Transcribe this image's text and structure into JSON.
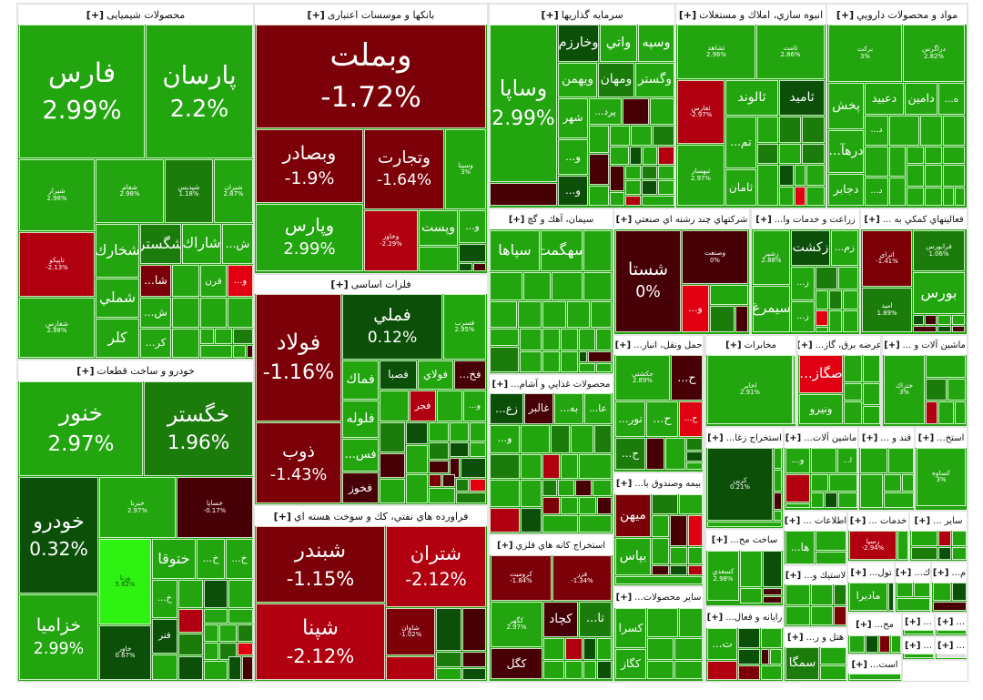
{
  "colors": {
    "g": "#22a50f",
    "m": "#1b7c0c",
    "d": "#0b4f09",
    "l": "#2ef212",
    "r": "#b10010",
    "R": "#e00012",
    "dr": "#7b0008",
    "k": "#460006"
  },
  "expand_label": "[+]",
  "sectors": [
    {
      "title": "محصولات شیمیایی",
      "tiles": [
        {
          "name": "فارس",
          "pct": "2.99%",
          "color": "g"
        },
        {
          "name": "پارسان",
          "pct": "2.2%",
          "color": "g"
        },
        {
          "name": "شیراز",
          "pct": "2.98%",
          "color": "g"
        },
        {
          "name": "شفام",
          "pct": "2.98%",
          "color": "g"
        },
        {
          "name": "شپدیس",
          "pct": "1.18%",
          "color": "m"
        },
        {
          "name": "شیران",
          "pct": "2.87%",
          "color": "g"
        },
        {
          "name": "تاپیکو",
          "pct": "-2.13%",
          "color": "r"
        },
        {
          "name": "شفارس",
          "pct": "2.98%",
          "color": "g"
        },
        {
          "name": "شخارك",
          "color": "g"
        },
        {
          "name": "شگستر",
          "color": "m"
        },
        {
          "name": "شاراك",
          "color": "g"
        },
        {
          "name": "ش...",
          "color": "g"
        },
        {
          "name": "شا...",
          "color": "dr"
        },
        {
          "name": "قرن",
          "color": "g"
        },
        {
          "name": "و...",
          "color": "R"
        },
        {
          "name": "شملي",
          "color": "g"
        },
        {
          "name": "كلر",
          "color": "g"
        },
        {
          "name": "ش...",
          "color": "g"
        },
        {
          "name": "كر...",
          "color": "g"
        }
      ]
    },
    {
      "title": "بانکها و موسسات اعتباری",
      "tiles": [
        {
          "name": "وبملت",
          "pct": "-1.72%",
          "color": "dr"
        },
        {
          "name": "وبصادر",
          "pct": "-1.9%",
          "color": "dr"
        },
        {
          "name": "وتجارت",
          "pct": "-1.64%",
          "color": "dr"
        },
        {
          "name": "وسینا",
          "pct": "3%",
          "color": "g"
        },
        {
          "name": "وپارس",
          "pct": "2.99%",
          "color": "g"
        },
        {
          "name": "وخاور",
          "pct": "-2.29%",
          "color": "r"
        },
        {
          "name": "وپست",
          "color": "g"
        },
        {
          "name": "و...",
          "color": "g"
        }
      ]
    },
    {
      "title": "فلزات اساسی",
      "tiles": [
        {
          "name": "فولاد",
          "pct": "-1.16%",
          "color": "dr"
        },
        {
          "name": "ذوب",
          "pct": "-1.43%",
          "color": "dr"
        },
        {
          "name": "فملي",
          "pct": "0.12%",
          "color": "d"
        },
        {
          "name": "فسرب",
          "pct": "2.95%",
          "color": "g"
        },
        {
          "name": "فماك",
          "color": "g"
        },
        {
          "name": "فصبا",
          "color": "d"
        },
        {
          "name": "فولاي",
          "color": "g"
        },
        {
          "name": "فخ...",
          "color": "k"
        },
        {
          "name": "فجر",
          "color": "r"
        },
        {
          "name": "و...",
          "color": "g"
        },
        {
          "name": "فلوله",
          "color": "g"
        },
        {
          "name": "فس...",
          "color": "g"
        },
        {
          "name": "فخوز",
          "color": "k"
        }
      ]
    },
    {
      "title": "فراورده هاي نفتي، كك و سوخت هسته اي",
      "tiles": [
        {
          "name": "شبندر",
          "pct": "-1.15%",
          "color": "dr"
        },
        {
          "name": "شتران",
          "pct": "-2.12%",
          "color": "r"
        },
        {
          "name": "شپنا",
          "pct": "-2.12%",
          "color": "r"
        },
        {
          "name": "شاوان",
          "pct": "-1.02%",
          "color": "dr"
        }
      ]
    },
    {
      "title": "خودرو و ساخت قطعات",
      "tiles": [
        {
          "name": "خنور",
          "pct": "2.97%",
          "color": "g"
        },
        {
          "name": "خگستر",
          "pct": "1.96%",
          "color": "m"
        },
        {
          "name": "خودرو",
          "pct": "0.32%",
          "color": "d"
        },
        {
          "name": "خزامیا",
          "pct": "2.99%",
          "color": "g"
        },
        {
          "name": "خبرنا",
          "pct": "2.97%",
          "color": "g"
        },
        {
          "name": "خساپا",
          "pct": "-0.17%",
          "color": "k"
        },
        {
          "name": "ورنا",
          "pct": "5.82%",
          "color": "l"
        },
        {
          "name": "خاور",
          "pct": "0.67%",
          "color": "d"
        },
        {
          "name": "ختوقا",
          "color": "g"
        },
        {
          "name": "خ...",
          "color": "g"
        },
        {
          "name": "خ...",
          "color": "g"
        },
        {
          "name": "خ...",
          "color": "g"
        },
        {
          "name": "فنر",
          "color": "d"
        }
      ]
    },
    {
      "title": "سرمایه گذاریها",
      "tiles": [
        {
          "name": "وساپا",
          "pct": "2.99%",
          "color": "g"
        },
        {
          "name": "وخارزم",
          "color": "d"
        },
        {
          "name": "واتي",
          "color": "g"
        },
        {
          "name": "وسپه",
          "color": "g"
        },
        {
          "name": "ويهمن",
          "color": "g"
        },
        {
          "name": "ومهان",
          "color": "m"
        },
        {
          "name": "وگستر",
          "color": "g"
        },
        {
          "name": "شهر",
          "color": "g"
        },
        {
          "name": "پرد...",
          "color": "g"
        },
        {
          "name": "و...",
          "color": "g"
        },
        {
          "name": "و...",
          "color": "d"
        }
      ]
    },
    {
      "title": "انبوه سازي، املاك و مستغلات",
      "tiles": [
        {
          "name": "ثشاهد",
          "pct": "2.96%",
          "color": "g"
        },
        {
          "name": "ثامت",
          "pct": "2.86%",
          "color": "g"
        },
        {
          "name": "ثفارس",
          "pct": "-2.97%",
          "color": "r"
        },
        {
          "name": "ثبهساز",
          "pct": "2.97%",
          "color": "g"
        },
        {
          "name": "ثالوند",
          "color": "g"
        },
        {
          "name": "ثاميد",
          "color": "d"
        },
        {
          "name": "تم...",
          "color": "g"
        },
        {
          "name": "ثامان",
          "color": "g"
        }
      ]
    },
    {
      "title": "مواد و محصولات دارويي",
      "tiles": [
        {
          "name": "برکت",
          "pct": "3%",
          "color": "g"
        },
        {
          "name": "دراگرس",
          "pct": "2.82%",
          "color": "g"
        },
        {
          "name": "پخش",
          "color": "g"
        },
        {
          "name": "دعبيد",
          "color": "g"
        },
        {
          "name": "دامين",
          "color": "g"
        },
        {
          "name": "ه...",
          "color": "g"
        },
        {
          "name": "درهآ...",
          "color": "g"
        },
        {
          "name": "دجابر",
          "color": "g"
        },
        {
          "name": "د...",
          "color": "g"
        },
        {
          "name": "د...",
          "color": "g"
        }
      ]
    },
    {
      "title": "سيمان، آهك و گچ",
      "tiles": [
        {
          "name": "سپاها",
          "color": "g"
        },
        {
          "name": "سهگمت",
          "color": "g"
        }
      ]
    },
    {
      "title": "شركتهاي چند رشته اي صنعتي",
      "tiles": [
        {
          "name": "شستا",
          "pct": "0%",
          "color": "k"
        },
        {
          "name": "وصنعت",
          "pct": "0%",
          "color": "k"
        },
        {
          "name": "و...",
          "color": "R"
        }
      ]
    },
    {
      "title": "زراعت و خدمات وا...",
      "tiles": [
        {
          "name": "زشير",
          "pct": "2.88%",
          "color": "g"
        },
        {
          "name": "زكشت",
          "color": "d"
        },
        {
          "name": "زم...",
          "color": "g"
        },
        {
          "name": "سيمرغ",
          "color": "g"
        },
        {
          "name": "ز...",
          "color": "g"
        },
        {
          "name": "ز...",
          "color": "g"
        }
      ]
    },
    {
      "title": "فعاليتهاي كمكي به ...",
      "tiles": [
        {
          "name": "اتراي",
          "pct": "-1.41%",
          "color": "dr"
        },
        {
          "name": "فرابورس",
          "pct": "1.06%",
          "color": "m"
        },
        {
          "name": "اميد",
          "pct": "1.89%",
          "color": "m"
        },
        {
          "name": "بورس",
          "color": "g"
        }
      ]
    },
    {
      "title": "حمل ونقل، انبار...",
      "tiles": [
        {
          "name": "حکشتی",
          "pct": "2.89%",
          "color": "g"
        },
        {
          "name": "ح...",
          "color": "k"
        },
        {
          "name": "تور...",
          "color": "g"
        },
        {
          "name": "ح...",
          "color": "g"
        },
        {
          "name": "ح...",
          "color": "R"
        },
        {
          "name": "ح...",
          "color": "m"
        }
      ]
    },
    {
      "title": "مخابرات",
      "tiles": [
        {
          "name": "اخابر",
          "pct": "2.91%",
          "color": "g"
        }
      ]
    },
    {
      "title": "عرضه برق، گاز...",
      "tiles": [
        {
          "name": "صگاز...",
          "color": "R"
        },
        {
          "name": "ونيرو",
          "color": "g"
        }
      ]
    },
    {
      "title": "ماشين آلات و ...",
      "tiles": [
        {
          "name": "ختراك",
          "pct": "3%",
          "color": "g"
        }
      ]
    },
    {
      "title": "محصولات غذايي و آشام...",
      "tiles": [
        {
          "name": "زع...",
          "color": "d"
        },
        {
          "name": "غالبر",
          "color": "k"
        },
        {
          "name": "به...",
          "color": "g"
        },
        {
          "name": "عا...",
          "color": "g"
        },
        {
          "name": "و...",
          "color": "g"
        }
      ]
    },
    {
      "title": "بيمه وصندوق با...",
      "tiles": [
        {
          "name": "ميهن",
          "color": "dr"
        },
        {
          "name": "بپاس",
          "color": "g"
        }
      ]
    },
    {
      "title": "استخراج كانه هاي فلزي",
      "tiles": [
        {
          "name": "كروميت",
          "pct": "-1.84%",
          "color": "dr"
        },
        {
          "name": "فزر",
          "pct": "-1.34%",
          "color": "dr"
        },
        {
          "name": "كگهر",
          "pct": "2.97%",
          "color": "g"
        },
        {
          "name": "كچاد",
          "color": "k"
        },
        {
          "name": "تا...",
          "color": "m"
        },
        {
          "name": "كگل",
          "color": "k"
        }
      ]
    },
    {
      "title": "ساير محصولات...",
      "tiles": [
        {
          "name": "كسرا",
          "color": "g"
        },
        {
          "name": "كگاز",
          "color": "g"
        }
      ]
    },
    {
      "title": "استخراج زغا...",
      "tiles": [
        {
          "name": "كرين",
          "pct": "0.21%",
          "color": "d"
        }
      ]
    },
    {
      "title": "ماشين آلات...",
      "tiles": [
        {
          "name": "و...",
          "color": "g"
        },
        {
          "name": "ا...",
          "color": "g"
        }
      ]
    },
    {
      "title": "قند و ...",
      "tiles": []
    },
    {
      "title": "استخ...",
      "tiles": [
        {
          "name": "كساوه",
          "pct": "3%",
          "color": "g"
        }
      ]
    },
    {
      "title": "ساخت مح...",
      "tiles": [
        {
          "name": "كسعدي",
          "pct": "2.98%",
          "color": "g"
        }
      ]
    },
    {
      "title": "اطلاعات ...",
      "tiles": [
        {
          "name": "ها...",
          "color": "g"
        }
      ]
    },
    {
      "title": "خدمات ...",
      "tiles": [
        {
          "name": "رسپا",
          "pct": "-2.94%",
          "color": "r"
        }
      ]
    },
    {
      "title": "ساير ...",
      "tiles": []
    },
    {
      "title": "رايانه و فعال...",
      "tiles": [
        {
          "name": "ت...",
          "color": "g"
        }
      ]
    },
    {
      "title": "لاستيك و...",
      "tiles": []
    },
    {
      "title": "تول...",
      "tiles": [
        {
          "name": "ماديرا",
          "color": "g"
        }
      ]
    },
    {
      "title": "ك...",
      "tiles": []
    },
    {
      "title": "م...",
      "tiles": []
    },
    {
      "title": "هتل و ر...",
      "tiles": [
        {
          "name": "سمگا",
          "color": "m"
        }
      ]
    },
    {
      "title": "مح...",
      "tiles": []
    },
    {
      "title": "...",
      "tiles": []
    },
    {
      "title": "...",
      "tiles": []
    },
    {
      "title": "...",
      "tiles": []
    },
    {
      "title": "است...",
      "tiles": []
    },
    {
      "title": "...",
      "tiles": []
    }
  ]
}
